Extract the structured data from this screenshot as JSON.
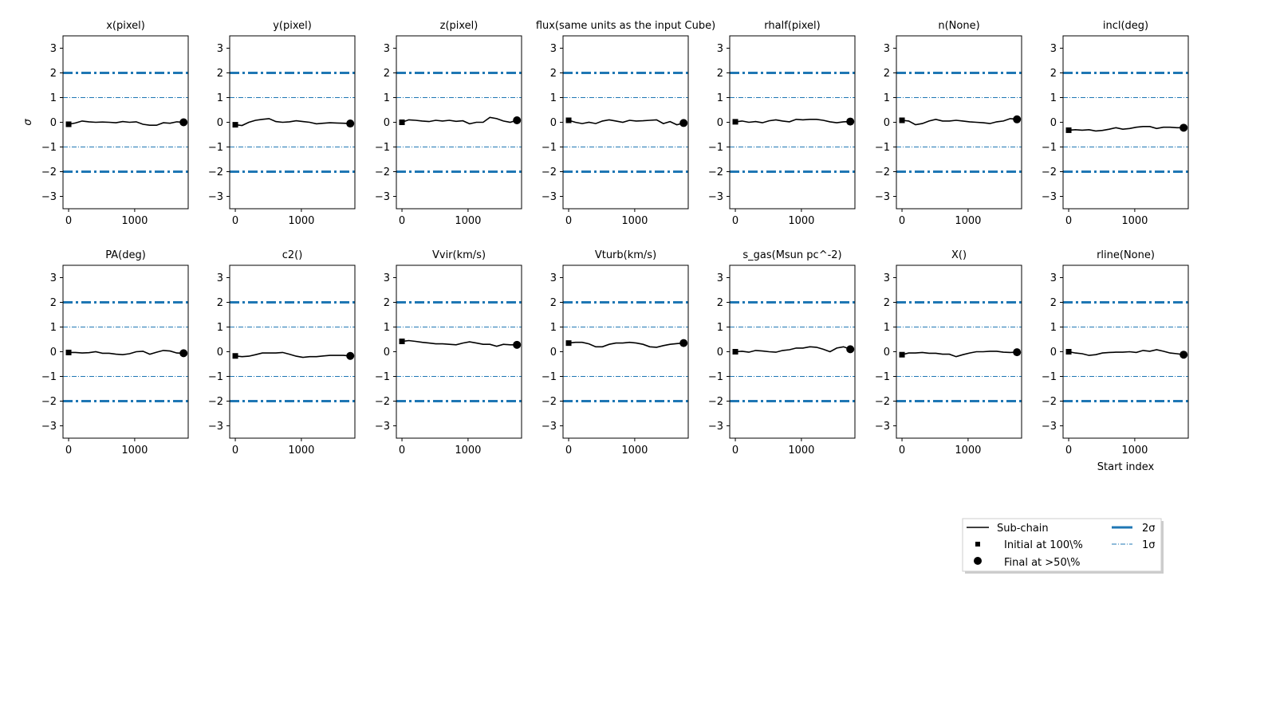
{
  "chart_data": {
    "type": "line",
    "ylabel": "σ",
    "xlabel": "Start index",
    "ylim": [
      -3.5,
      3.5
    ],
    "xlim": [
      -85,
      1810
    ],
    "yticks": [
      3,
      2,
      1,
      0,
      -1,
      -2,
      -3
    ],
    "xticks": [
      0,
      1000
    ],
    "x_end": 1740,
    "grid": false,
    "legend_placement": "lower-right",
    "colors": {
      "chain": "#000000",
      "sigma": "#1f77b4"
    },
    "reference_lines": [
      {
        "y": 2,
        "label": "2σ"
      },
      {
        "y": -2,
        "label": "2σ"
      },
      {
        "y": 1,
        "label": "1σ"
      },
      {
        "y": -1,
        "label": "1σ"
      }
    ],
    "legend": {
      "subchain": "Sub-chain",
      "initial": "Initial at 100\\%",
      "final": "Final at  >50\\%",
      "two_sigma": "2σ",
      "one_sigma": "1σ"
    },
    "panels": [
      {
        "title": "x(pixel)",
        "values": [
          -0.08,
          -0.03,
          0.05,
          0.02,
          0,
          0.01,
          0,
          -0.02,
          0.03,
          0,
          0.02,
          -0.08,
          -0.12,
          -0.12,
          -0.02,
          -0.04,
          0.02,
          0
        ]
      },
      {
        "title": "y(pixel)",
        "values": [
          -0.1,
          -0.13,
          0,
          0.08,
          0.12,
          0.15,
          0.03,
          0,
          0.02,
          0.06,
          0.03,
          0,
          -0.06,
          -0.04,
          -0.02,
          -0.03,
          -0.04,
          -0.05
        ]
      },
      {
        "title": "z(pixel)",
        "values": [
          0,
          0.1,
          0.08,
          0.05,
          0.03,
          0.08,
          0.05,
          0.08,
          0.04,
          0.06,
          -0.06,
          0,
          0,
          0.2,
          0.15,
          0.05,
          0,
          0.08
        ]
      },
      {
        "title": "flux(same units as the input Cube)",
        "values": [
          0.08,
          0,
          -0.05,
          0,
          -0.05,
          0.05,
          0.1,
          0.05,
          0,
          0.08,
          0.05,
          0.06,
          0.08,
          0.1,
          -0.05,
          0.03,
          -0.1,
          -0.03
        ]
      },
      {
        "title": "rhalf(pixel)",
        "values": [
          0.02,
          0.05,
          0,
          0.03,
          -0.02,
          0.06,
          0.1,
          0.05,
          0.02,
          0.12,
          0.1,
          0.12,
          0.12,
          0.08,
          0.02,
          -0.02,
          0.02,
          0.03
        ]
      },
      {
        "title": "n(None)",
        "values": [
          0.08,
          0.05,
          -0.1,
          -0.05,
          0.05,
          0.12,
          0.05,
          0.05,
          0.08,
          0.05,
          0.02,
          0,
          -0.02,
          -0.05,
          0.02,
          0.05,
          0.15,
          0.12
        ]
      },
      {
        "title": "incl(deg)",
        "values": [
          -0.32,
          -0.3,
          -0.32,
          -0.3,
          -0.35,
          -0.33,
          -0.28,
          -0.22,
          -0.28,
          -0.25,
          -0.2,
          -0.17,
          -0.17,
          -0.25,
          -0.2,
          -0.2,
          -0.22,
          -0.22
        ]
      },
      {
        "title": "PA(deg)",
        "values": [
          -0.03,
          -0.03,
          -0.05,
          -0.04,
          0,
          -0.06,
          -0.06,
          -0.1,
          -0.12,
          -0.08,
          0,
          0.02,
          -0.1,
          -0.02,
          0.05,
          0.03,
          -0.05,
          -0.06
        ]
      },
      {
        "title": "c2()",
        "values": [
          -0.17,
          -0.2,
          -0.18,
          -0.12,
          -0.05,
          -0.05,
          -0.05,
          -0.03,
          -0.1,
          -0.18,
          -0.23,
          -0.2,
          -0.2,
          -0.17,
          -0.15,
          -0.15,
          -0.15,
          -0.17
        ]
      },
      {
        "title": "Vvir(km/s)",
        "values": [
          0.42,
          0.45,
          0.42,
          0.38,
          0.35,
          0.32,
          0.32,
          0.3,
          0.28,
          0.35,
          0.4,
          0.35,
          0.3,
          0.3,
          0.22,
          0.3,
          0.28,
          0.28
        ]
      },
      {
        "title": "Vturb(km/s)",
        "values": [
          0.35,
          0.38,
          0.38,
          0.32,
          0.2,
          0.2,
          0.3,
          0.35,
          0.35,
          0.38,
          0.35,
          0.3,
          0.2,
          0.18,
          0.25,
          0.3,
          0.33,
          0.35
        ]
      },
      {
        "title": "s_gas(Msun pc^-2)",
        "values": [
          0,
          0.02,
          -0.02,
          0.05,
          0.03,
          0,
          -0.02,
          0.05,
          0.08,
          0.15,
          0.15,
          0.2,
          0.18,
          0.1,
          0,
          0.15,
          0.2,
          0.1
        ]
      },
      {
        "title": "X()",
        "values": [
          -0.12,
          -0.05,
          -0.05,
          -0.03,
          -0.06,
          -0.06,
          -0.1,
          -0.1,
          -0.2,
          -0.12,
          -0.05,
          0,
          0,
          0.02,
          0.02,
          -0.02,
          -0.03,
          -0.02
        ]
      },
      {
        "title": "rline(None)",
        "values": [
          0,
          -0.05,
          -0.08,
          -0.15,
          -0.12,
          -0.05,
          -0.03,
          -0.02,
          -0.02,
          0,
          -0.03,
          0.05,
          0.02,
          0.08,
          0.02,
          -0.05,
          -0.08,
          -0.12
        ]
      }
    ]
  }
}
